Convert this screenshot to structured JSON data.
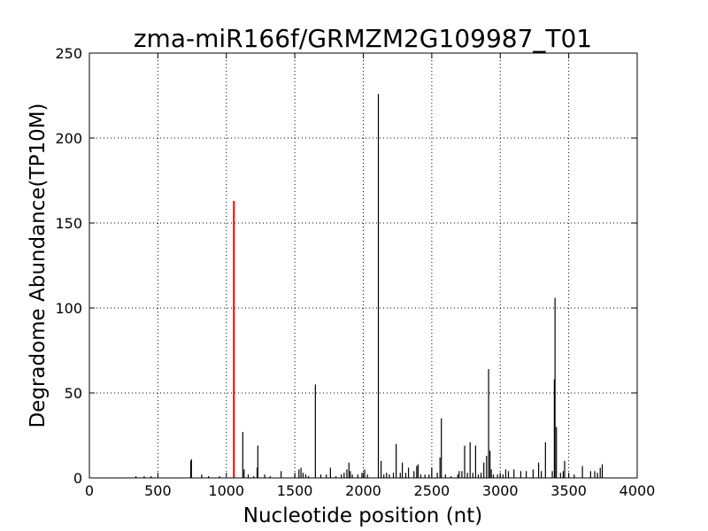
{
  "chart_data": {
    "type": "bar",
    "title": "zma-miR166f/GRMZM2G109987_T01",
    "xlabel": "Nucleotide position (nt)",
    "ylabel": "Degradome Abundance(TP10M)",
    "xlim": [
      0,
      4000
    ],
    "ylim": [
      0,
      250
    ],
    "xticks": [
      0,
      500,
      1000,
      1500,
      2000,
      2500,
      3000,
      3500,
      4000
    ],
    "yticks": [
      0,
      50,
      100,
      150,
      200,
      250
    ],
    "grid": true,
    "grid_style": "dotted",
    "colors": {
      "series": "#000000",
      "highlight": "#ff0000",
      "grid": "#000000"
    },
    "series": [
      {
        "values": [
          [
            340,
            1
          ],
          [
            400,
            1
          ],
          [
            450,
            1
          ],
          [
            740,
            10
          ],
          [
            745,
            11
          ],
          [
            820,
            2
          ],
          [
            870,
            1
          ],
          [
            950,
            1
          ],
          [
            1120,
            27
          ],
          [
            1130,
            5
          ],
          [
            1160,
            2
          ],
          [
            1200,
            1
          ],
          [
            1225,
            6
          ],
          [
            1230,
            19
          ],
          [
            1280,
            2
          ],
          [
            1320,
            1
          ],
          [
            1400,
            4
          ],
          [
            1500,
            2
          ],
          [
            1530,
            5
          ],
          [
            1545,
            6
          ],
          [
            1560,
            3
          ],
          [
            1580,
            2
          ],
          [
            1600,
            1
          ],
          [
            1650,
            55
          ],
          [
            1690,
            2
          ],
          [
            1730,
            2
          ],
          [
            1760,
            6
          ],
          [
            1800,
            1
          ],
          [
            1840,
            2
          ],
          [
            1860,
            3
          ],
          [
            1880,
            5
          ],
          [
            1895,
            9
          ],
          [
            1905,
            4
          ],
          [
            1920,
            2
          ],
          [
            1960,
            2
          ],
          [
            1990,
            3
          ],
          [
            2010,
            5
          ],
          [
            2030,
            2
          ],
          [
            2110,
            226
          ],
          [
            2130,
            10
          ],
          [
            2150,
            2
          ],
          [
            2170,
            3
          ],
          [
            2190,
            2
          ],
          [
            2220,
            3
          ],
          [
            2240,
            20
          ],
          [
            2270,
            3
          ],
          [
            2285,
            9
          ],
          [
            2310,
            3
          ],
          [
            2330,
            6
          ],
          [
            2370,
            4
          ],
          [
            2390,
            7
          ],
          [
            2400,
            8
          ],
          [
            2420,
            2
          ],
          [
            2450,
            2
          ],
          [
            2480,
            2
          ],
          [
            2500,
            6
          ],
          [
            2540,
            3
          ],
          [
            2560,
            12
          ],
          [
            2570,
            35
          ],
          [
            2600,
            2
          ],
          [
            2640,
            1
          ],
          [
            2690,
            2
          ],
          [
            2700,
            4
          ],
          [
            2720,
            4
          ],
          [
            2740,
            19
          ],
          [
            2760,
            3
          ],
          [
            2780,
            21
          ],
          [
            2800,
            3
          ],
          [
            2820,
            19
          ],
          [
            2840,
            2
          ],
          [
            2860,
            3
          ],
          [
            2880,
            9
          ],
          [
            2900,
            13
          ],
          [
            2915,
            64
          ],
          [
            2925,
            16
          ],
          [
            2935,
            5
          ],
          [
            2950,
            2
          ],
          [
            2980,
            2
          ],
          [
            3000,
            2
          ],
          [
            3020,
            2
          ],
          [
            3040,
            5
          ],
          [
            3060,
            4
          ],
          [
            3100,
            5
          ],
          [
            3150,
            4
          ],
          [
            3190,
            4
          ],
          [
            3240,
            5
          ],
          [
            3280,
            9
          ],
          [
            3300,
            4
          ],
          [
            3330,
            21
          ],
          [
            3380,
            4
          ],
          [
            3395,
            58
          ],
          [
            3400,
            106
          ],
          [
            3410,
            30
          ],
          [
            3440,
            3
          ],
          [
            3460,
            4
          ],
          [
            3470,
            10
          ],
          [
            3500,
            2
          ],
          [
            3540,
            2
          ],
          [
            3600,
            7
          ],
          [
            3660,
            4
          ],
          [
            3690,
            4
          ],
          [
            3710,
            3
          ],
          [
            3730,
            6
          ],
          [
            3745,
            8
          ]
        ]
      }
    ],
    "highlight": {
      "x": 1055,
      "y": 163
    }
  }
}
